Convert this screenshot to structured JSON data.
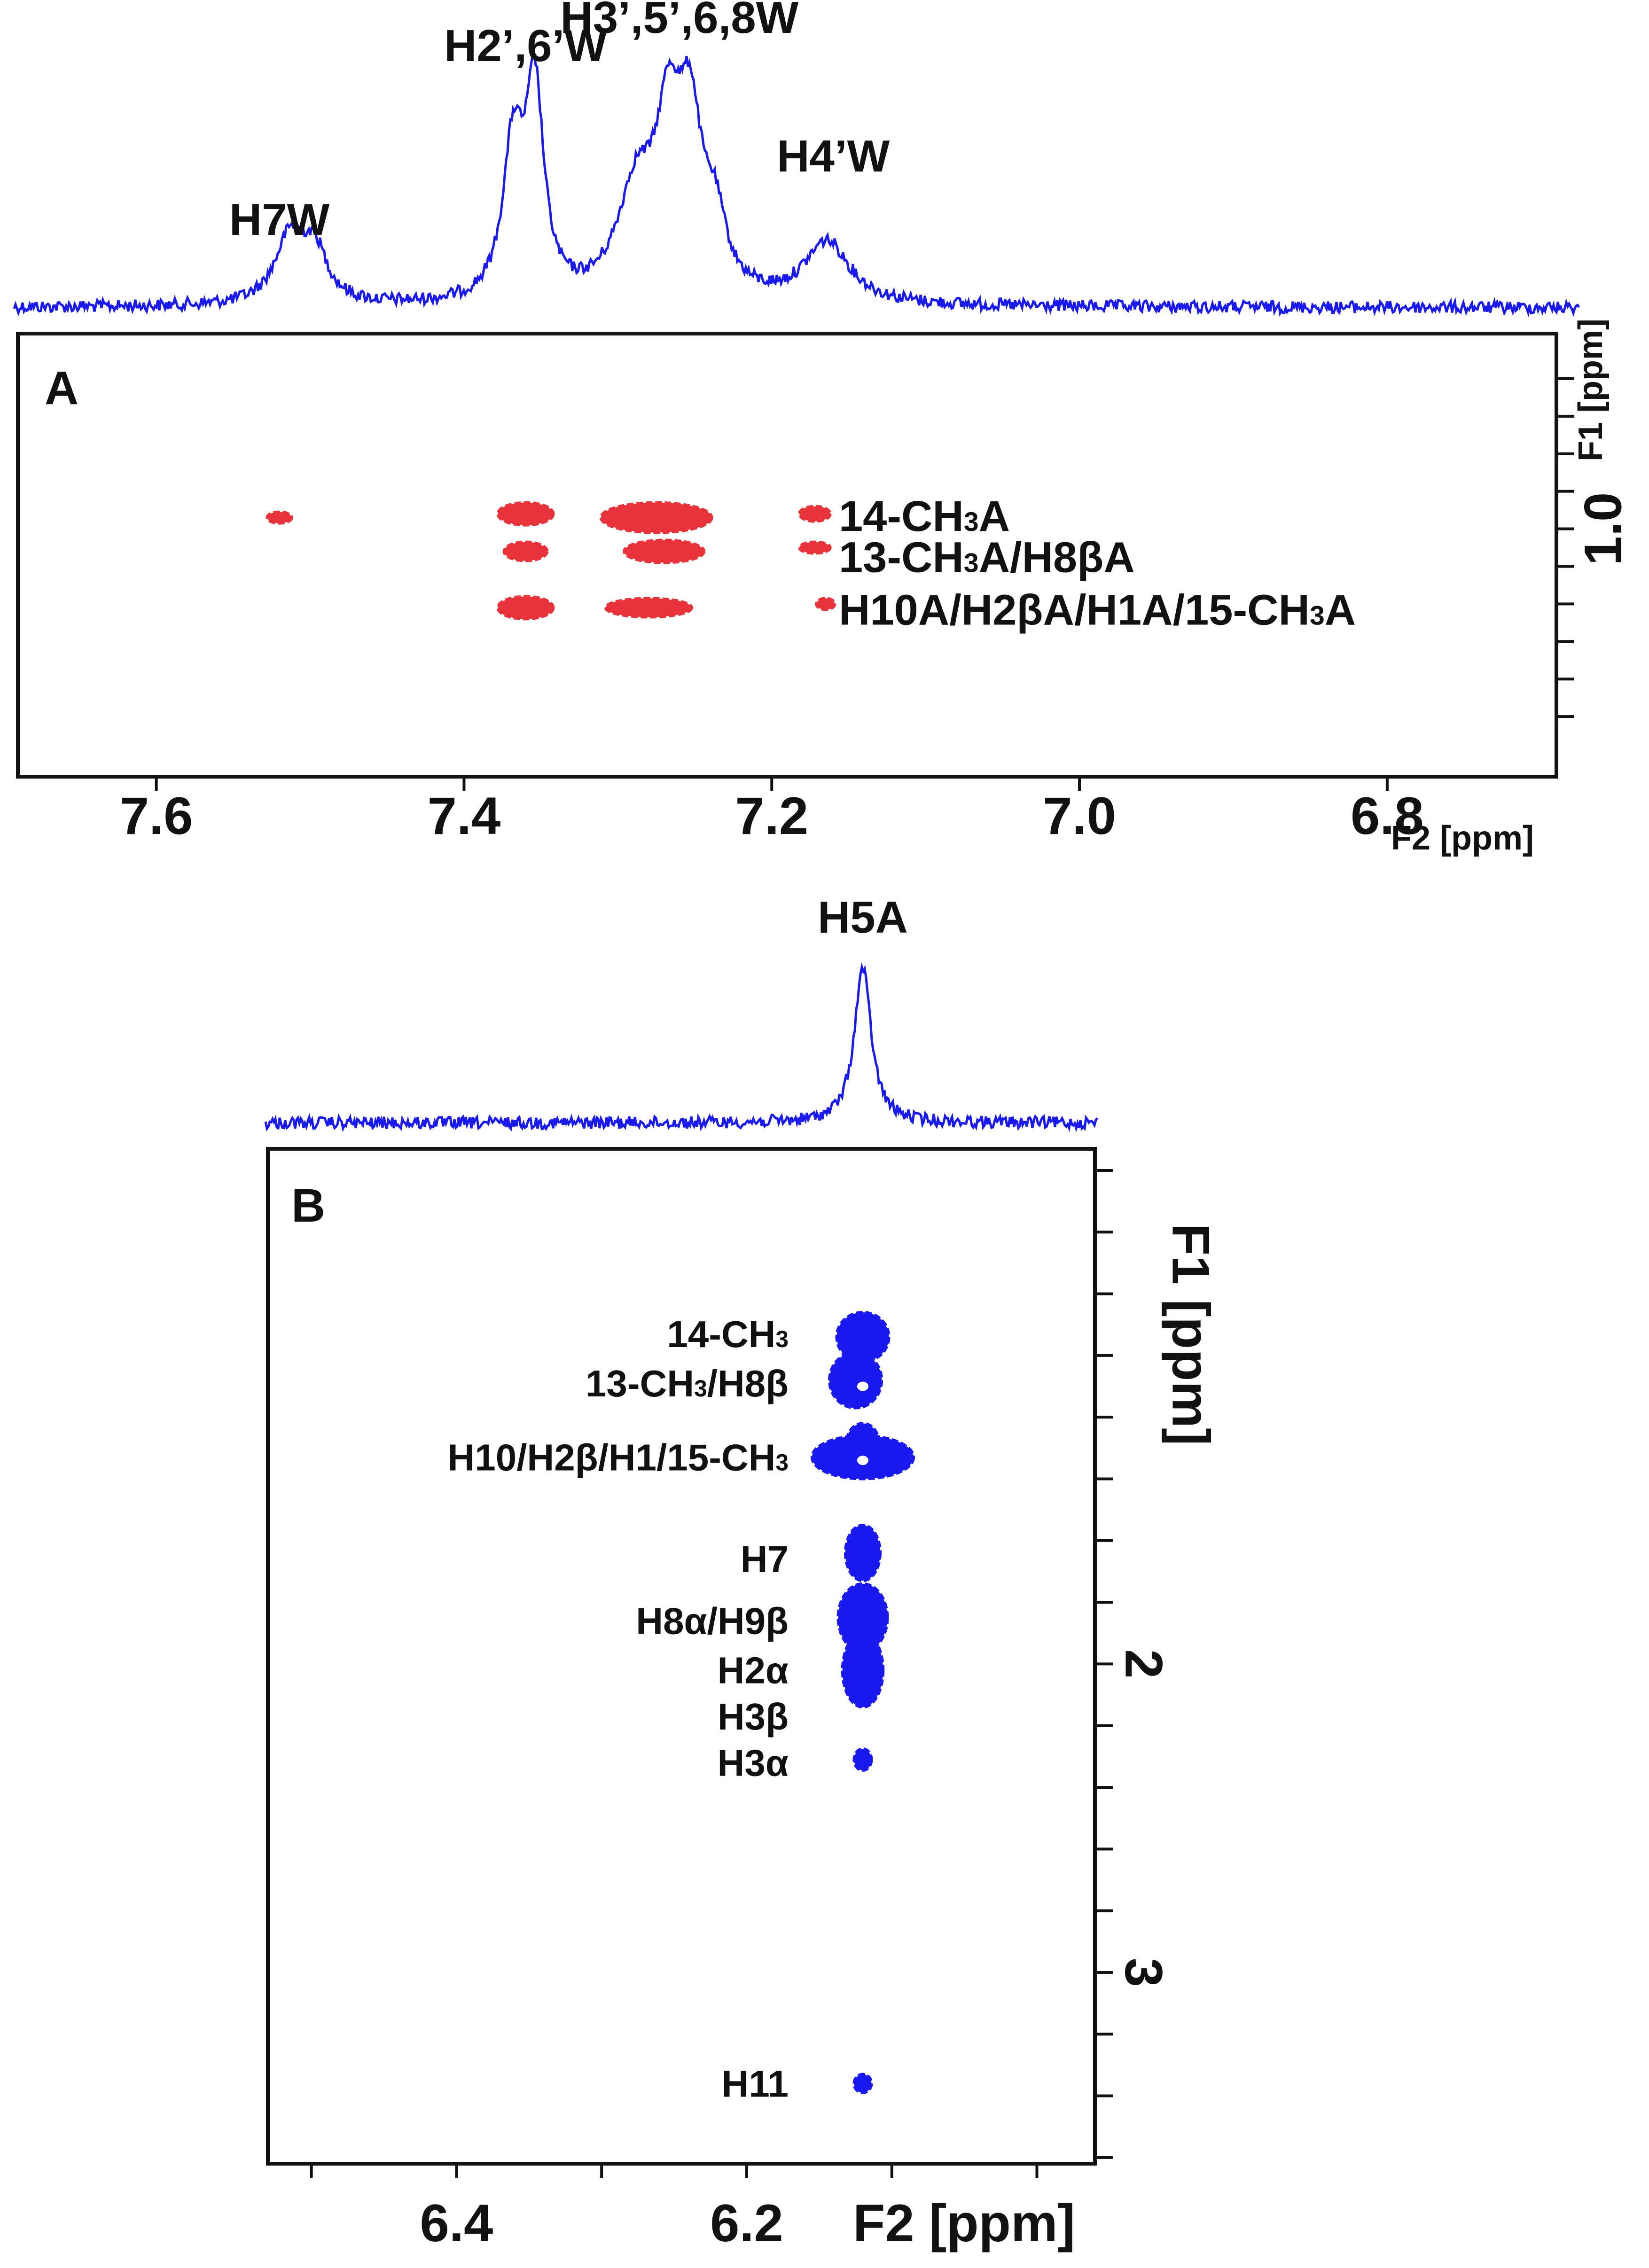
{
  "chart_data": [
    {
      "panel": "A",
      "type": "scatter",
      "subtype": "2D NMR spectrum with 1D projection",
      "x_axis": {
        "label": "F2 [ppm]",
        "range": [
          7.69,
          6.69
        ],
        "ticks": [
          7.6,
          7.4,
          7.2,
          7.0,
          6.8
        ],
        "tick_labels": [
          "7.6",
          "7.4",
          "7.2",
          "7.0",
          "6.8"
        ]
      },
      "y_axis": {
        "label": "F1 [ppm]",
        "range": [
          0.48,
          1.66
        ],
        "ticks": [
          0.6,
          0.7,
          0.8,
          0.9,
          1.0,
          1.1,
          1.2,
          1.3,
          1.4,
          1.5
        ],
        "labeled_tick": 1.0,
        "labeled_tick_text": "1.0"
      },
      "projection": {
        "series_name": "1D spectrum",
        "peak_labels": [
          {
            "text": "H7W",
            "x": 7.52
          },
          {
            "text": "H2’,6’W",
            "x": 7.36
          },
          {
            "text": "H3’,5’,6,8W",
            "x": 7.26
          },
          {
            "text": "H4’W",
            "x": 7.16
          }
        ],
        "peaks": [
          {
            "x": 7.513,
            "height": 0.3,
            "width": 0.012
          },
          {
            "x": 7.497,
            "height": 0.22,
            "width": 0.01
          },
          {
            "x": 7.368,
            "height": 0.68,
            "width": 0.008
          },
          {
            "x": 7.354,
            "height": 0.92,
            "width": 0.007
          },
          {
            "x": 7.288,
            "height": 0.48,
            "width": 0.015
          },
          {
            "x": 7.267,
            "height": 0.7,
            "width": 0.01
          },
          {
            "x": 7.253,
            "height": 0.7,
            "width": 0.009
          },
          {
            "x": 7.237,
            "height": 0.3,
            "width": 0.009
          },
          {
            "x": 7.164,
            "height": 0.28,
            "width": 0.018
          }
        ]
      },
      "cross_peak_color": "#e8333a",
      "cross_peaks": [
        {
          "x": 7.52,
          "y": 0.97,
          "wx": 0.008,
          "wy": 0.015
        },
        {
          "x": 7.36,
          "y": 0.96,
          "wx": 0.018,
          "wy": 0.03
        },
        {
          "x": 7.36,
          "y": 1.06,
          "wx": 0.014,
          "wy": 0.025
        },
        {
          "x": 7.36,
          "y": 1.21,
          "wx": 0.018,
          "wy": 0.03
        },
        {
          "x": 7.275,
          "y": 0.97,
          "wx": 0.036,
          "wy": 0.04
        },
        {
          "x": 7.27,
          "y": 1.06,
          "wx": 0.026,
          "wy": 0.03
        },
        {
          "x": 7.28,
          "y": 1.21,
          "wx": 0.028,
          "wy": 0.025
        },
        {
          "x": 7.172,
          "y": 0.96,
          "wx": 0.01,
          "wy": 0.02
        },
        {
          "x": 7.172,
          "y": 1.05,
          "wx": 0.01,
          "wy": 0.015
        },
        {
          "x": 7.165,
          "y": 1.2,
          "wx": 0.006,
          "wy": 0.015
        }
      ],
      "annotations": [
        {
          "text": "14-CH",
          "sub": "3",
          "rest": "A",
          "y": 0.965
        },
        {
          "text": "13-CH",
          "sub": "3",
          "rest": "A/H8βA",
          "y": 1.075
        },
        {
          "text": "H10A/H2βA/H1A/15-CH",
          "sub": "3",
          "rest": "A",
          "y": 1.215
        }
      ],
      "panel_label": "A"
    },
    {
      "panel": "B",
      "type": "scatter",
      "subtype": "2D NMR spectrum with 1D projection",
      "x_axis": {
        "label": "F2 [ppm]",
        "range": [
          6.53,
          5.96
        ],
        "ticks": [
          6.5,
          6.4,
          6.3,
          6.2,
          6.1,
          6.0
        ],
        "tick_labels": [
          "",
          "6.4",
          "",
          "6.2",
          "",
          ""
        ]
      },
      "y_axis": {
        "label": "F1 [ppm]",
        "range": [
          0.33,
          3.62
        ],
        "ticks": [
          0.4,
          0.6,
          0.8,
          1.0,
          1.2,
          1.4,
          1.6,
          1.8,
          2.0,
          2.2,
          2.4,
          2.6,
          2.8,
          3.0,
          3.2,
          3.4,
          3.6
        ],
        "labeled_ticks": [
          2,
          3
        ],
        "labeled_tick_texts": [
          "2",
          "3"
        ]
      },
      "projection": {
        "series_name": "1D spectrum",
        "peak_labels": [
          {
            "text": "H5A",
            "x": 6.12
          }
        ],
        "peaks": [
          {
            "x": 6.12,
            "height": 1.0,
            "width": 0.007
          }
        ]
      },
      "cross_peak_color": "#1a1aee",
      "cross_peaks": [
        {
          "x": 6.12,
          "y": 0.94,
          "wx": 0.018,
          "wy": 0.08
        },
        {
          "x": 6.125,
          "y": 1.08,
          "wx": 0.018,
          "wy": 0.09
        },
        {
          "x": 6.12,
          "y": 1.28,
          "wx": 0.011,
          "wy": 0.06
        },
        {
          "x": 6.12,
          "y": 1.33,
          "wx": 0.035,
          "wy": 0.07
        },
        {
          "x": 6.12,
          "y": 1.64,
          "wx": 0.012,
          "wy": 0.09
        },
        {
          "x": 6.12,
          "y": 1.85,
          "wx": 0.017,
          "wy": 0.11
        },
        {
          "x": 6.12,
          "y": 2.02,
          "wx": 0.014,
          "wy": 0.12
        },
        {
          "x": 6.12,
          "y": 2.31,
          "wx": 0.006,
          "wy": 0.035
        },
        {
          "x": 6.12,
          "y": 3.36,
          "wx": 0.006,
          "wy": 0.03
        }
      ],
      "center_holes": [
        {
          "x": 6.12,
          "y": 1.34
        },
        {
          "x": 6.12,
          "y": 1.1
        }
      ],
      "annotations": [
        {
          "text": "14-CH",
          "sub": "3",
          "rest": "",
          "y": 0.93
        },
        {
          "text": "13-CH",
          "sub": "3",
          "rest": "/H8β",
          "y": 1.09
        },
        {
          "text": "H10/H2β/H1/15-CH",
          "sub": "3",
          "rest": "",
          "y": 1.33
        },
        {
          "text": "H7",
          "sub": "",
          "rest": "",
          "y": 1.66
        },
        {
          "text": "H8α/H9β",
          "sub": "",
          "rest": "",
          "y": 1.86
        },
        {
          "text": "H2α",
          "sub": "",
          "rest": "",
          "y": 2.02
        },
        {
          "text": "H3β",
          "sub": "",
          "rest": "",
          "y": 2.17
        },
        {
          "text": "H3α",
          "sub": "",
          "rest": "",
          "y": 2.32
        },
        {
          "text": "H11",
          "sub": "",
          "rest": "",
          "y": 3.36
        }
      ],
      "panel_label": "B"
    }
  ],
  "spectrum_color": "#1a1aee"
}
